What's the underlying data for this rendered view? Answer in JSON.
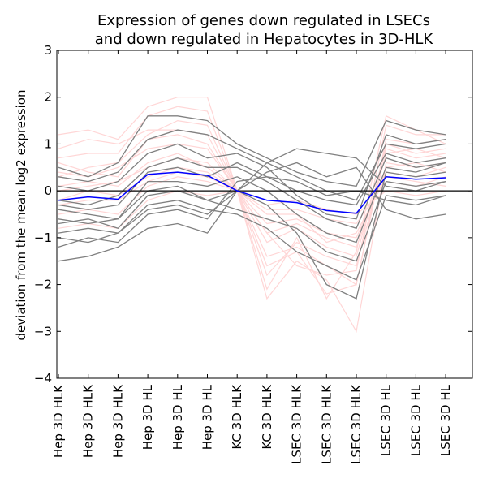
{
  "chart_data": {
    "type": "line",
    "title": [
      "Expression of genes down regulated in LSECs",
      "and down regulated in Hepatocytes in 3D-HLK"
    ],
    "xlabel": "",
    "ylabel": "deviation from the mean log2 expression",
    "categories": [
      "Hep 3D HLK",
      "Hep 3D HLK",
      "Hep 3D HLK",
      "Hep 3D HL",
      "Hep 3D HL",
      "Hep 3D HL",
      "KC 3D HLK",
      "KC 3D HLK",
      "LSEC 3D HLK",
      "LSEC 3D HLK",
      "LSEC 3D HLK",
      "LSEC 3D HL",
      "LSEC 3D HL",
      "LSEC 3D HL"
    ],
    "ylim": [
      -4,
      3
    ],
    "yticks": [
      -4,
      -3,
      -2,
      -1,
      0,
      1,
      2,
      3
    ],
    "grid": false,
    "zero_line": true,
    "colors": {
      "pink": "#ffd6d6",
      "gray": "#808080",
      "mean": "#0000ff",
      "zero": "#000000"
    },
    "series": [
      {
        "group": "pink",
        "values": [
          0.9,
          1.1,
          1.0,
          1.3,
          1.3,
          1.2,
          0.0,
          -0.9,
          -1.6,
          -1.8,
          -1.7,
          1.4,
          1.2,
          1.2
        ]
      },
      {
        "group": "pink",
        "values": [
          0.7,
          0.8,
          0.8,
          1.6,
          1.8,
          1.7,
          0.0,
          -1.4,
          -1.2,
          -1.6,
          -2.0,
          1.1,
          1.0,
          1.1
        ]
      },
      {
        "group": "pink",
        "values": [
          1.2,
          1.3,
          1.1,
          1.8,
          2.0,
          2.0,
          0.0,
          -2.1,
          -1.0,
          -2.3,
          -1.3,
          1.6,
          1.3,
          1.0
        ]
      },
      {
        "group": "pink",
        "values": [
          0.4,
          0.3,
          0.5,
          0.9,
          1.0,
          0.9,
          0.0,
          -1.1,
          -0.8,
          -1.2,
          -1.4,
          0.9,
          0.7,
          0.8
        ]
      },
      {
        "group": "pink",
        "values": [
          0.1,
          0.2,
          0.1,
          0.6,
          0.8,
          0.5,
          0.0,
          -2.3,
          -1.5,
          -1.9,
          -3.0,
          0.6,
          0.5,
          0.6
        ]
      },
      {
        "group": "pink",
        "values": [
          -0.2,
          0.0,
          -0.1,
          0.3,
          0.5,
          0.4,
          0.0,
          -0.7,
          -0.6,
          -0.9,
          -1.0,
          0.4,
          0.3,
          0.5
        ]
      },
      {
        "group": "pink",
        "values": [
          -0.5,
          -0.4,
          -0.5,
          0.1,
          0.3,
          0.2,
          0.0,
          -0.4,
          -0.4,
          -0.6,
          -0.7,
          0.2,
          0.1,
          0.3
        ]
      },
      {
        "group": "pink",
        "values": [
          0.6,
          0.4,
          0.3,
          1.1,
          1.2,
          1.0,
          0.0,
          -1.8,
          -1.1,
          -1.4,
          -1.6,
          0.8,
          0.9,
          0.7
        ]
      },
      {
        "group": "pink",
        "values": [
          -0.3,
          -0.2,
          -0.2,
          0.2,
          0.4,
          0.3,
          0.0,
          -0.5,
          -0.5,
          -1.1,
          -0.9,
          0.3,
          0.2,
          0.1
        ]
      },
      {
        "group": "pink",
        "values": [
          0.3,
          0.5,
          0.6,
          1.2,
          1.5,
          1.4,
          0.0,
          -1.6,
          -1.3,
          -2.2,
          -2.0,
          1.0,
          0.8,
          0.9
        ]
      },
      {
        "group": "pink",
        "values": [
          -0.8,
          -0.7,
          -0.8,
          -0.2,
          0.0,
          -0.1,
          0.0,
          -0.3,
          -0.2,
          -0.4,
          -0.5,
          0.0,
          -0.1,
          0.0
        ]
      },
      {
        "group": "pink",
        "values": [
          0.0,
          0.1,
          0.2,
          0.5,
          0.7,
          0.6,
          0.0,
          -0.9,
          -0.7,
          -1.0,
          -1.2,
          0.5,
          0.6,
          0.4
        ]
      },
      {
        "group": "gray",
        "values": [
          -1.5,
          -1.4,
          -1.2,
          -0.8,
          -0.7,
          -0.9,
          0.0,
          0.4,
          0.6,
          0.3,
          0.5,
          -0.4,
          -0.6,
          -0.5
        ]
      },
      {
        "group": "gray",
        "values": [
          -1.0,
          -1.1,
          -0.9,
          -0.4,
          -0.3,
          -0.5,
          0.0,
          0.6,
          0.9,
          0.8,
          0.7,
          0.1,
          0.0,
          0.2
        ]
      },
      {
        "group": "gray",
        "values": [
          -0.6,
          -0.7,
          -0.6,
          0.0,
          0.1,
          -0.2,
          0.0,
          -0.3,
          -0.9,
          -2.0,
          -2.3,
          0.4,
          0.3,
          0.4
        ]
      },
      {
        "group": "gray",
        "values": [
          0.5,
          0.3,
          0.6,
          1.6,
          1.6,
          1.5,
          1.0,
          0.7,
          0.4,
          0.2,
          0.1,
          1.5,
          1.3,
          1.2
        ]
      },
      {
        "group": "gray",
        "values": [
          -0.3,
          -0.4,
          -0.3,
          0.4,
          0.5,
          0.3,
          0.6,
          0.3,
          0.0,
          -0.2,
          -0.3,
          0.8,
          0.6,
          0.7
        ]
      },
      {
        "group": "gray",
        "values": [
          0.1,
          0.0,
          0.2,
          0.8,
          1.0,
          0.7,
          0.8,
          0.5,
          -0.1,
          -0.5,
          -0.6,
          1.2,
          1.0,
          1.1
        ]
      },
      {
        "group": "gray",
        "values": [
          -0.9,
          -0.8,
          -0.9,
          -0.3,
          -0.2,
          -0.4,
          -0.5,
          -0.8,
          -1.3,
          -1.6,
          -1.9,
          -0.1,
          -0.2,
          -0.1
        ]
      },
      {
        "group": "gray",
        "values": [
          -0.4,
          -0.5,
          -0.6,
          0.2,
          0.2,
          0.1,
          0.3,
          0.0,
          -0.5,
          -0.9,
          -1.1,
          0.5,
          0.4,
          0.6
        ]
      },
      {
        "group": "gray",
        "values": [
          -1.2,
          -1.0,
          -1.1,
          -0.5,
          -0.4,
          -0.6,
          0.2,
          0.3,
          0.2,
          -0.1,
          0.0,
          -0.2,
          -0.3,
          -0.1
        ]
      },
      {
        "group": "gray",
        "values": [
          0.3,
          0.2,
          0.4,
          1.1,
          1.3,
          1.2,
          0.9,
          0.6,
          0.3,
          0.0,
          -0.2,
          1.0,
          0.9,
          1.0
        ]
      },
      {
        "group": "gray",
        "values": [
          -0.7,
          -0.6,
          -0.8,
          -0.1,
          0.0,
          -0.2,
          -0.4,
          -0.6,
          -0.8,
          -1.3,
          -1.5,
          0.2,
          0.1,
          0.2
        ]
      },
      {
        "group": "gray",
        "values": [
          -0.2,
          -0.3,
          -0.1,
          0.5,
          0.7,
          0.5,
          0.5,
          0.2,
          -0.2,
          -0.6,
          -0.8,
          0.7,
          0.5,
          0.6
        ]
      },
      {
        "group": "mean",
        "name": "mean",
        "values": [
          -0.2,
          -0.13,
          -0.18,
          0.35,
          0.4,
          0.33,
          0.0,
          -0.2,
          -0.25,
          -0.42,
          -0.48,
          0.3,
          0.25,
          0.28
        ]
      }
    ]
  }
}
